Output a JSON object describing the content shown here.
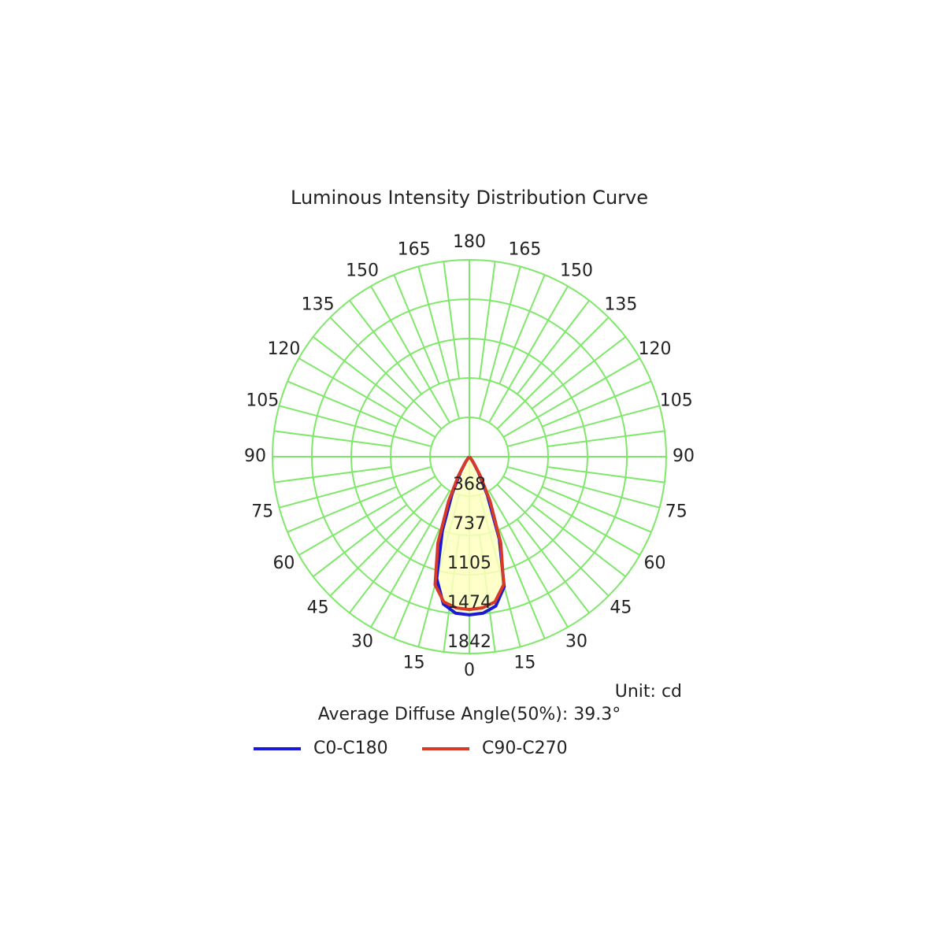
{
  "chart_data": {
    "type": "polar",
    "title": "Luminous Intensity Distribution Curve",
    "unit_label": "Unit: cd",
    "note": "Average Diffuse Angle(50%): 39.3°",
    "angle_ticks": [
      0,
      15,
      30,
      45,
      60,
      75,
      90,
      105,
      120,
      135,
      150,
      165,
      180
    ],
    "rlim": [
      0,
      1842
    ],
    "rticks": [
      368,
      737,
      1105,
      1474,
      1842
    ],
    "grid_color": "#7fe86a",
    "fill_color": "#ffffc0",
    "x": [
      -45,
      -40,
      -35,
      -30,
      -25,
      -20,
      -15,
      -10,
      -5,
      0,
      5,
      10,
      15,
      20,
      25,
      30,
      35,
      40,
      45
    ],
    "series": [
      {
        "name": "C0-C180",
        "color": "#1a1ad6",
        "values": [
          0,
          20,
          60,
          160,
          380,
          740,
          1180,
          1400,
          1470,
          1480,
          1470,
          1420,
          1260,
          820,
          400,
          170,
          60,
          20,
          0
        ]
      },
      {
        "name": "C90-C270",
        "color": "#d83a2a",
        "values": [
          0,
          20,
          70,
          200,
          460,
          860,
          1240,
          1380,
          1420,
          1430,
          1420,
          1380,
          1240,
          860,
          460,
          200,
          70,
          20,
          0
        ]
      }
    ]
  }
}
